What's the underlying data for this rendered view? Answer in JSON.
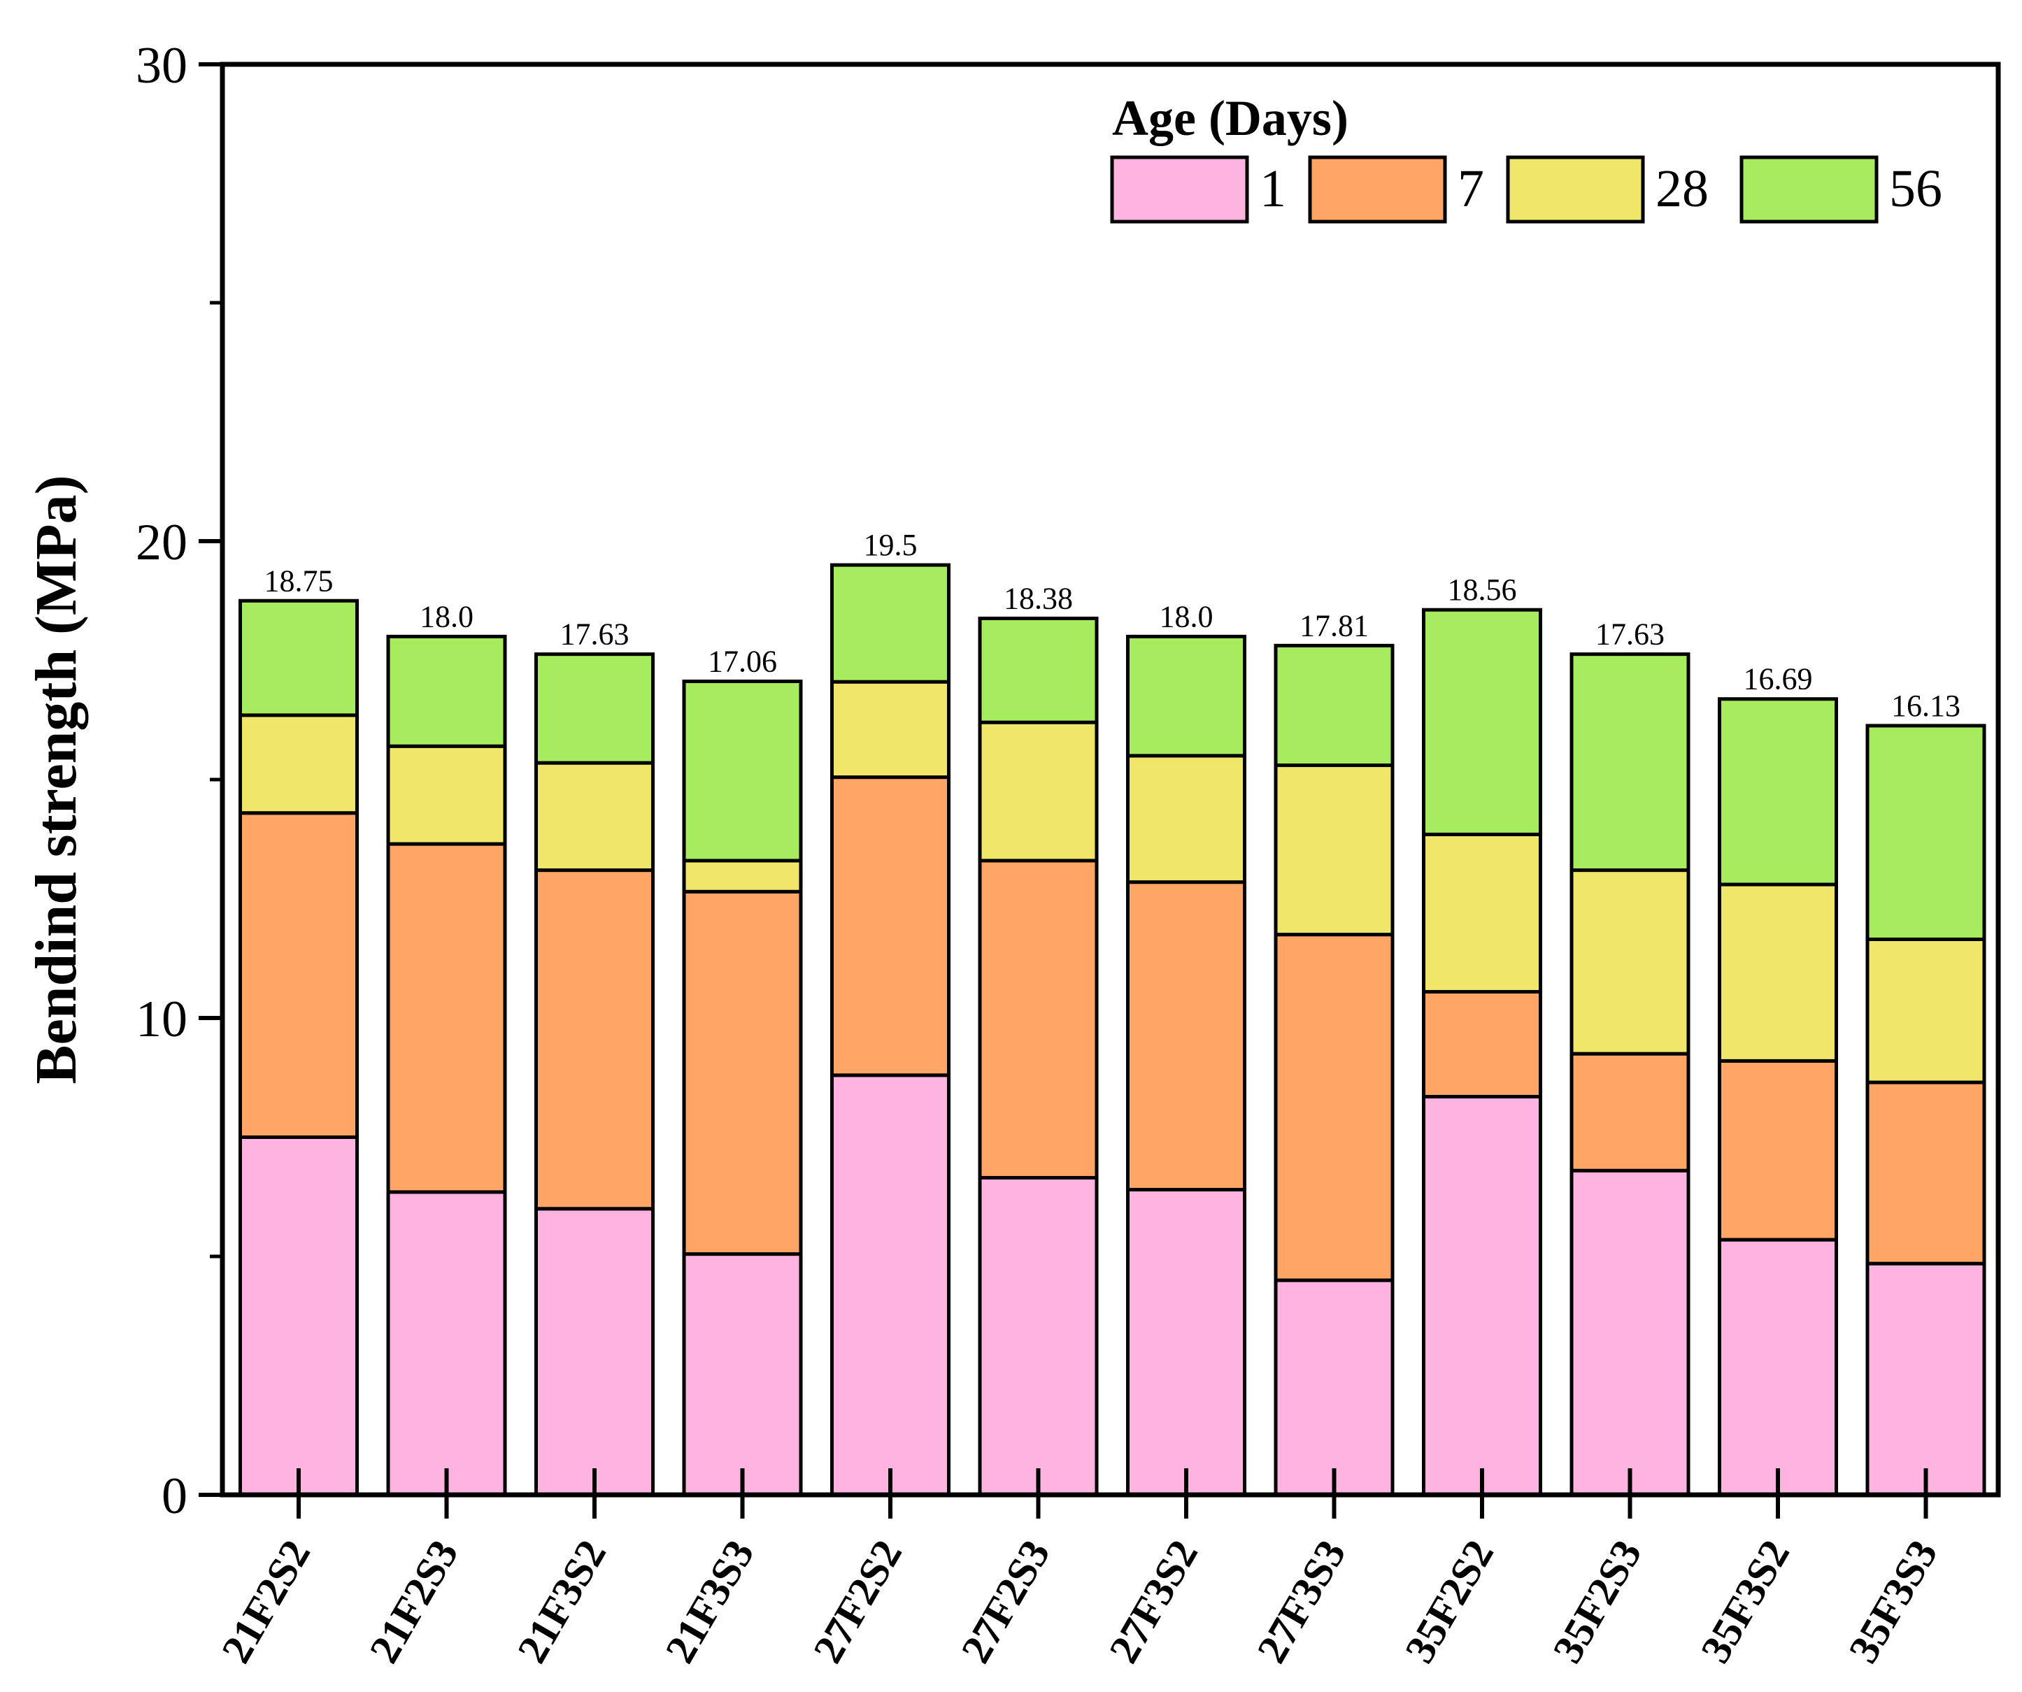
{
  "chart_data": {
    "type": "bar",
    "stacked": true,
    "title": "",
    "xlabel": "",
    "ylabel": "Bendind strength (MPa)",
    "ylim": [
      0,
      30
    ],
    "yticks": [
      "0",
      "10",
      "20",
      "30"
    ],
    "categories": [
      "21F2S2",
      "21F2S3",
      "21F3S2",
      "21F3S3",
      "27F2S2",
      "27F2S3",
      "27F3S2",
      "27F3S3",
      "35F2S2",
      "35F2S3",
      "35F3S2",
      "35F3S3"
    ],
    "totals": [
      "18.75",
      "18.0",
      "17.63",
      "17.06",
      "19.5",
      "18.38",
      "18.0",
      "17.81",
      "18.56",
      "17.63",
      "16.69",
      "16.13"
    ],
    "legend": {
      "title": "Age (Days)",
      "position": "top-right"
    },
    "series": [
      {
        "name": "1",
        "color": "#ffb3e0",
        "values": [
          7.5,
          6.35,
          6.0,
          5.05,
          8.8,
          6.65,
          6.4,
          4.5,
          8.35,
          6.8,
          5.35,
          4.85
        ]
      },
      {
        "name": "7",
        "color": "#ffa566",
        "values": [
          6.8,
          7.3,
          7.1,
          7.6,
          6.25,
          6.65,
          6.45,
          7.25,
          2.2,
          2.45,
          3.75,
          3.8
        ]
      },
      {
        "name": "28",
        "color": "#f0e66a",
        "values": [
          2.05,
          2.05,
          2.25,
          0.65,
          2.0,
          2.9,
          2.65,
          3.55,
          3.3,
          3.85,
          3.7,
          3.0
        ]
      },
      {
        "name": "56",
        "color": "#a6ec5e",
        "values": [
          2.4,
          2.3,
          2.28,
          3.76,
          2.45,
          2.18,
          2.5,
          2.51,
          4.71,
          4.53,
          3.89,
          4.48
        ]
      }
    ]
  }
}
